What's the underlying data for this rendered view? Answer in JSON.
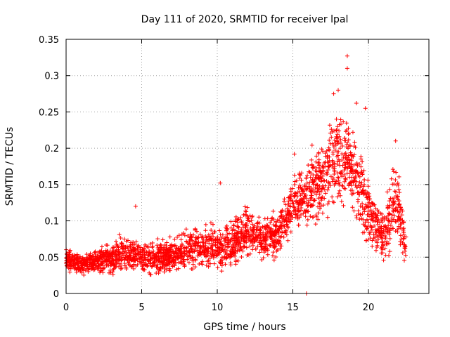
{
  "chart_data": {
    "type": "scatter",
    "title": "Day 111 of 2020, SRMTID for receiver lpal",
    "xlabel": "GPS time / hours",
    "ylabel": "SRMTID / TECUs",
    "xlim": [
      0,
      24
    ],
    "ylim": [
      0,
      0.35
    ],
    "xticks": [
      0,
      5,
      10,
      15,
      20
    ],
    "xtick_labels": [
      "0",
      "5",
      "10",
      "15",
      "20"
    ],
    "yticks": [
      0,
      0.05,
      0.1,
      0.15,
      0.2,
      0.25,
      0.3,
      0.35
    ],
    "ytick_labels": [
      "0",
      "0.05",
      "0.1",
      "0.15",
      "0.2",
      "0.25",
      "0.3",
      "0.35"
    ],
    "grid": true,
    "marker": "+",
    "series_color": "#ff0000",
    "envelope_note": "dense scatter of SRMTID samples; envelope points below (hour, center, spread)",
    "envelope": [
      [
        0.0,
        0.045,
        0.02
      ],
      [
        1.0,
        0.04,
        0.02
      ],
      [
        2.0,
        0.045,
        0.02
      ],
      [
        3.0,
        0.05,
        0.03
      ],
      [
        4.0,
        0.055,
        0.03
      ],
      [
        5.0,
        0.05,
        0.03
      ],
      [
        6.0,
        0.05,
        0.03
      ],
      [
        7.0,
        0.055,
        0.03
      ],
      [
        8.0,
        0.06,
        0.035
      ],
      [
        9.0,
        0.065,
        0.035
      ],
      [
        10.0,
        0.065,
        0.04
      ],
      [
        11.0,
        0.07,
        0.04
      ],
      [
        12.0,
        0.085,
        0.045
      ],
      [
        13.0,
        0.075,
        0.04
      ],
      [
        14.0,
        0.08,
        0.04
      ],
      [
        15.0,
        0.12,
        0.05
      ],
      [
        16.0,
        0.14,
        0.06
      ],
      [
        17.0,
        0.16,
        0.08
      ],
      [
        18.0,
        0.19,
        0.09
      ],
      [
        19.0,
        0.17,
        0.08
      ],
      [
        20.0,
        0.11,
        0.06
      ],
      [
        21.0,
        0.08,
        0.05
      ],
      [
        21.8,
        0.13,
        0.08
      ],
      [
        22.5,
        0.06,
        0.03
      ]
    ],
    "highlights": [
      {
        "x": 18.6,
        "y": 0.327
      },
      {
        "x": 18.6,
        "y": 0.31
      },
      {
        "x": 18.0,
        "y": 0.28
      },
      {
        "x": 17.7,
        "y": 0.275
      },
      {
        "x": 19.2,
        "y": 0.262
      },
      {
        "x": 19.8,
        "y": 0.255
      },
      {
        "x": 15.1,
        "y": 0.192
      },
      {
        "x": 21.8,
        "y": 0.21
      },
      {
        "x": 4.6,
        "y": 0.12
      },
      {
        "x": 10.2,
        "y": 0.152
      },
      {
        "x": 15.9,
        "y": 0.0
      }
    ]
  }
}
